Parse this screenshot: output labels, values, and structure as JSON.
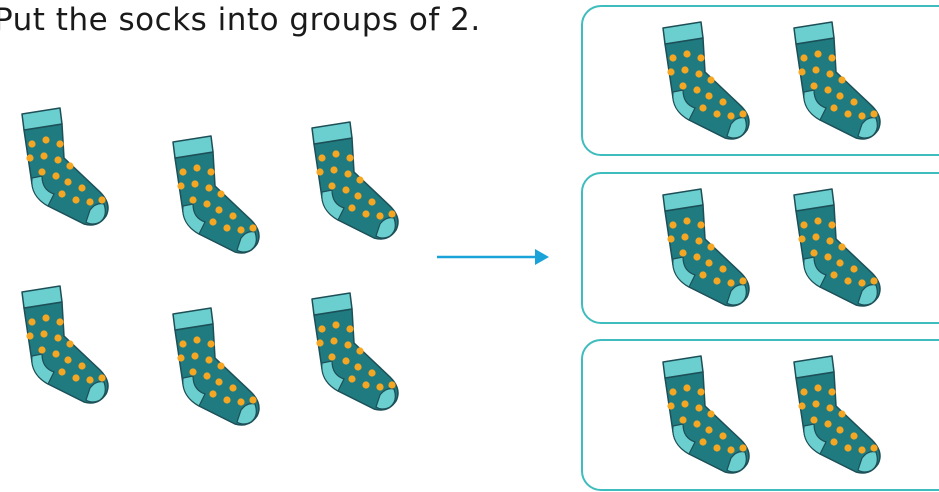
{
  "instruction": "Put the socks into groups of 2.",
  "loose_socks": [
    {
      "icon": "sock-icon"
    },
    {
      "icon": "sock-icon"
    },
    {
      "icon": "sock-icon"
    },
    {
      "icon": "sock-icon"
    },
    {
      "icon": "sock-icon"
    },
    {
      "icon": "sock-icon"
    }
  ],
  "groups": [
    {
      "socks": [
        "sock-icon",
        "sock-icon"
      ]
    },
    {
      "socks": [
        "sock-icon",
        "sock-icon"
      ]
    },
    {
      "socks": [
        "sock-icon",
        "sock-icon"
      ]
    }
  ],
  "arrow_icon": "arrow-right-icon",
  "colors": {
    "sock_body": "#1f7b80",
    "sock_cuff": "#6bcfd0",
    "sock_dots": "#f5a623",
    "sock_outline": "#1d4f57",
    "box_border": "#3fbcbd",
    "arrow": "#1aa3d8"
  }
}
